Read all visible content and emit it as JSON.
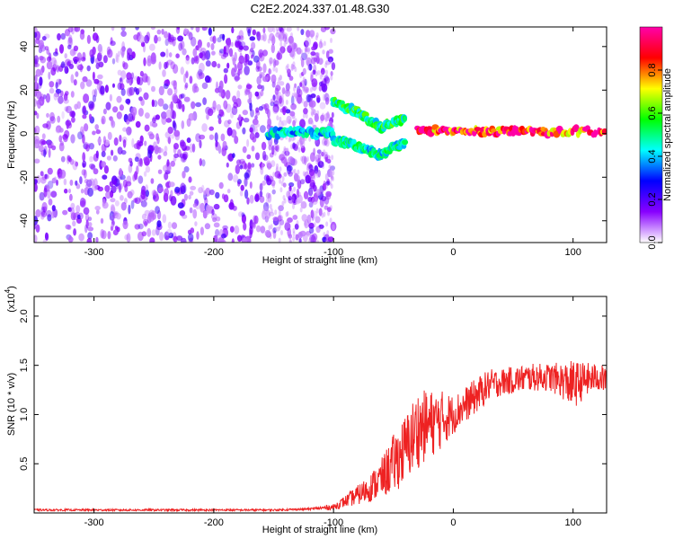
{
  "title": "C2E2.2024.337.01.48.G30",
  "chart_data": [
    {
      "type": "heatmap",
      "xlabel": "Height of straight line (km)",
      "ylabel": "Frequency (Hz)",
      "xlim": [
        -350,
        128
      ],
      "ylim": [
        -50,
        49
      ],
      "x_ticks": [
        -300,
        -200,
        -100,
        0,
        100
      ],
      "x_tick_labels": [
        "-300",
        "-200",
        "-100",
        "0",
        "100"
      ],
      "y_ticks": [
        -40,
        -20,
        0,
        20,
        40
      ],
      "y_tick_labels": [
        "-40",
        "-20",
        "0",
        "20",
        "40"
      ],
      "grid": false,
      "colorbar": {
        "label": "Normalized spectral amplitude",
        "range": [
          0.0,
          1.0
        ],
        "ticks": [
          0.0,
          0.2,
          0.4,
          0.6,
          0.8
        ],
        "tick_labels": [
          "0.0",
          "0.2",
          "0.4",
          "0.6",
          "0.8"
        ],
        "colormap": [
          "#ffffff",
          "#8800ff",
          "#0000ff",
          "#00ffff",
          "#00ff00",
          "#ffff00",
          "#ff0000",
          "#ff00aa"
        ]
      },
      "ridges": [
        {
          "x": [
            -155,
            -135,
            -115,
            -100
          ],
          "freq": [
            0,
            1,
            0,
            1
          ],
          "amplitude": 0.45
        },
        {
          "x": [
            -100,
            -90,
            -80,
            -70,
            -60,
            -50,
            -40
          ],
          "freq": [
            15,
            12,
            10,
            6,
            3,
            5,
            7
          ],
          "amplitude": 0.55
        },
        {
          "x": [
            -100,
            -90,
            -80,
            -70,
            -60,
            -50,
            -40
          ],
          "freq": [
            -3,
            -4,
            -6,
            -8,
            -10,
            -6,
            -4
          ],
          "amplitude": 0.5
        },
        {
          "x": [
            -30,
            0,
            30,
            60,
            90,
            128
          ],
          "freq": [
            2,
            1,
            1,
            1,
            1,
            1
          ],
          "amplitude": 0.95
        }
      ]
    },
    {
      "type": "line",
      "xlabel": "Height of straight line (km)",
      "ylabel": "SNR (10 * v/v)",
      "y_multiplier": "(x10",
      "y_multiplier_exp": "4",
      "xlim": [
        -350,
        128
      ],
      "ylim": [
        0,
        2.2
      ],
      "x_ticks": [
        -300,
        -200,
        -100,
        0,
        100
      ],
      "x_tick_labels": [
        "-300",
        "-200",
        "-100",
        "0",
        "100"
      ],
      "y_ticks": [
        0.5,
        1.0,
        1.5,
        2.0
      ],
      "y_tick_labels": [
        "0.5",
        "1.0",
        "1.5",
        "2.0"
      ],
      "grid": false,
      "series": [
        {
          "color": "#ee2222",
          "x": [
            -350,
            -300,
            -250,
            -200,
            -150,
            -120,
            -100,
            -90,
            -80,
            -70,
            -60,
            -50,
            -40,
            -30,
            -20,
            -10,
            0,
            10,
            20,
            30,
            40,
            50,
            60,
            70,
            80,
            90,
            100,
            110,
            120,
            128
          ],
          "y": [
            0.03,
            0.03,
            0.03,
            0.03,
            0.03,
            0.04,
            0.06,
            0.12,
            0.18,
            0.25,
            0.35,
            0.5,
            0.65,
            0.85,
            0.9,
            0.95,
            1.0,
            1.1,
            1.2,
            1.3,
            1.33,
            1.35,
            1.37,
            1.38,
            1.38,
            1.35,
            1.3,
            1.35,
            1.38,
            1.35
          ],
          "spread": [
            0.01,
            0.01,
            0.01,
            0.01,
            0.01,
            0.01,
            0.03,
            0.06,
            0.1,
            0.14,
            0.2,
            0.3,
            0.35,
            0.4,
            0.35,
            0.3,
            0.2,
            0.18,
            0.18,
            0.16,
            0.14,
            0.14,
            0.14,
            0.14,
            0.14,
            0.18,
            0.25,
            0.18,
            0.14,
            0.14
          ]
        }
      ]
    }
  ]
}
